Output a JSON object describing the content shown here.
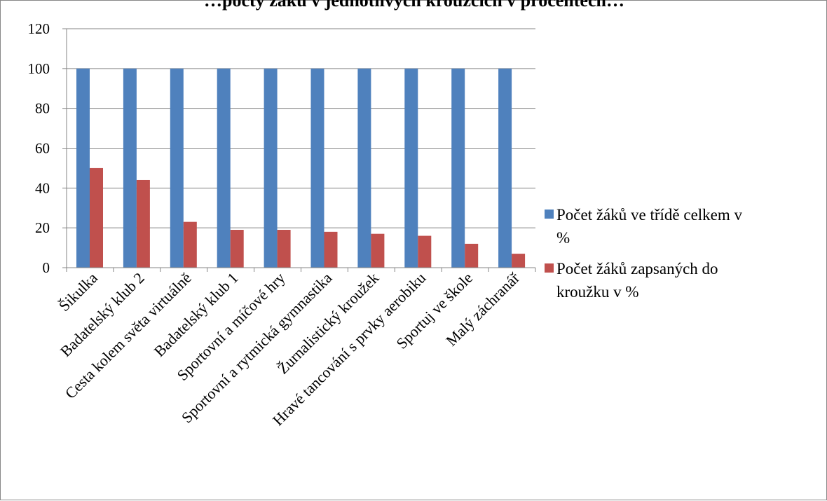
{
  "chart_data": {
    "type": "bar",
    "title": "…pocty žáků v jednotlivých kroužcích v procentech…",
    "categories": [
      "Šikulka",
      "Badatelský klub 2",
      "Cesta kolem světa virtuálně",
      "Badatelský klub 1",
      "Sportovní a míčové hry",
      "Sportovní a rytmická gymnastika",
      "Žurnalistický kroužek",
      "Hravé tancování s prvky aerobiku",
      "Sportuj ve škole",
      "Malý záchranář"
    ],
    "series": [
      {
        "name": "Počet žáků ve třídě celkem v %",
        "color": "#4F81BD",
        "values": [
          100,
          100,
          100,
          100,
          100,
          100,
          100,
          100,
          100,
          100
        ]
      },
      {
        "name": "Počet žáků zapsaných do kroužku v %",
        "color": "#C0504D",
        "values": [
          50,
          44,
          23,
          19,
          19,
          18,
          17,
          16,
          12,
          7
        ]
      }
    ],
    "ylim": [
      0,
      120
    ],
    "yticks": [
      "0",
      "20",
      "40",
      "60",
      "80",
      "100",
      "120"
    ],
    "grid": true,
    "legend_position": "right",
    "xlabel": "",
    "ylabel": ""
  },
  "legend": {
    "series1_lines": [
      "Počet žáků ve třídě celkem v",
      "%"
    ],
    "series2_lines": [
      "Počet žáků zapsaných do",
      "kroužku v %"
    ]
  }
}
